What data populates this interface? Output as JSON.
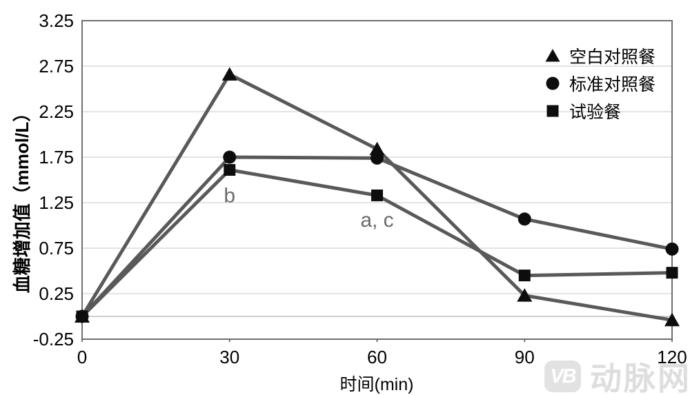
{
  "chart_data": {
    "type": "line",
    "title": "",
    "xlabel": "时间(min)",
    "ylabel": "血糖增加值（mmol/L）",
    "x": [
      0,
      30,
      60,
      90,
      120
    ],
    "x_tick_labels": [
      "0",
      "30",
      "60",
      "90",
      "120"
    ],
    "y_ticks": [
      -0.25,
      0.25,
      0.75,
      1.25,
      1.75,
      2.25,
      2.75,
      3.25
    ],
    "y_tick_labels": [
      "-0.25",
      "0.25",
      "0.75",
      "1.25",
      "1.75",
      "2.25",
      "2.75",
      "3.25"
    ],
    "xlim": [
      0,
      120
    ],
    "ylim": [
      -0.25,
      3.25
    ],
    "grid": true,
    "zero_line": true,
    "legend_position": "inside-top-right",
    "series": [
      {
        "name": "空白对照餐",
        "marker": "triangle",
        "values": [
          0,
          2.66,
          1.84,
          0.23,
          -0.04
        ]
      },
      {
        "name": "标准对照餐",
        "marker": "circle",
        "values": [
          0,
          1.75,
          1.74,
          1.07,
          0.74
        ]
      },
      {
        "name": "试验餐",
        "marker": "square",
        "values": [
          0,
          1.61,
          1.33,
          0.45,
          0.48
        ]
      }
    ],
    "annotations": [
      {
        "text": "b",
        "x": 30,
        "y": 1.33
      },
      {
        "text": "a, c",
        "x": 60,
        "y": 1.06
      }
    ],
    "colors": {
      "line": "#595959",
      "marker": "#0d0d0d",
      "grid": "#e3e3e3",
      "zero_line": "#cfcfcf",
      "axis_border": "#6e6e6e",
      "tick_label": "#000000",
      "annotation": "#6b6b6b"
    }
  },
  "watermark": {
    "logo_text": "VB",
    "text": "动脉网"
  }
}
